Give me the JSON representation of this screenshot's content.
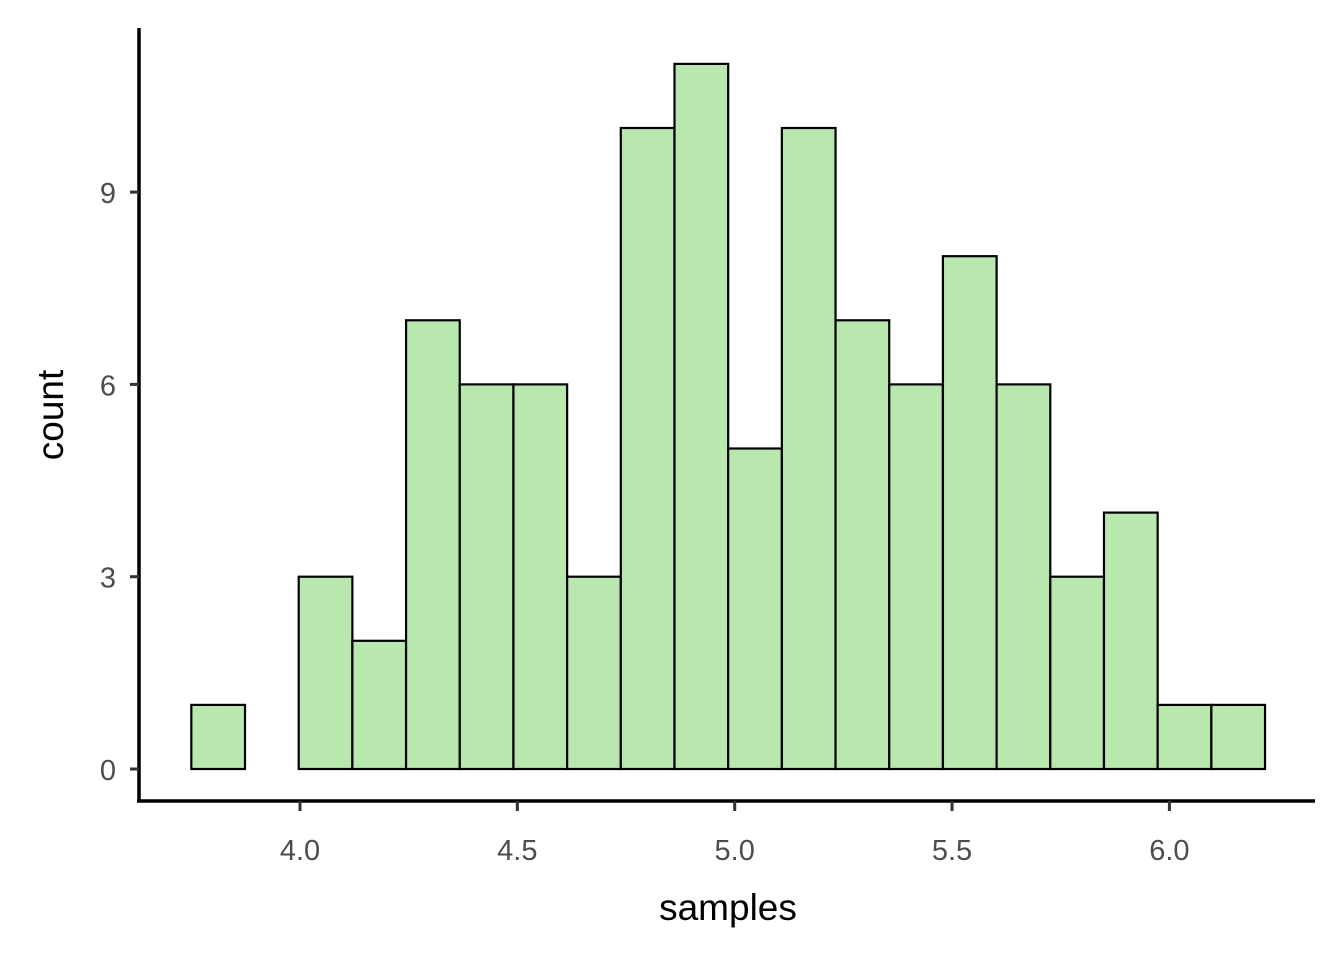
{
  "chart_data": {
    "type": "bar",
    "subtype": "histogram",
    "title": "",
    "xlabel": "samples",
    "ylabel": "count",
    "bin_start": 3.75,
    "bin_width": 0.1235,
    "bins": 20,
    "values": [
      1,
      0,
      3,
      2,
      7,
      6,
      6,
      3,
      10,
      11,
      5,
      10,
      7,
      6,
      8,
      6,
      3,
      4,
      1,
      1
    ],
    "x_ticks": [
      4.0,
      4.5,
      5.0,
      5.5,
      6.0
    ],
    "x_tick_labels": [
      "4.0",
      "4.5",
      "5.0",
      "5.5",
      "6.0"
    ],
    "y_ticks": [
      0,
      3,
      6,
      9
    ],
    "y_tick_labels": [
      "0",
      "3",
      "6",
      "9"
    ],
    "xlim": [
      3.63,
      6.33
    ],
    "ylim": [
      -0.5,
      11.6
    ],
    "grid": false,
    "legend": null,
    "fill_color": "#b8e8ae",
    "edge_color": "#000000"
  }
}
